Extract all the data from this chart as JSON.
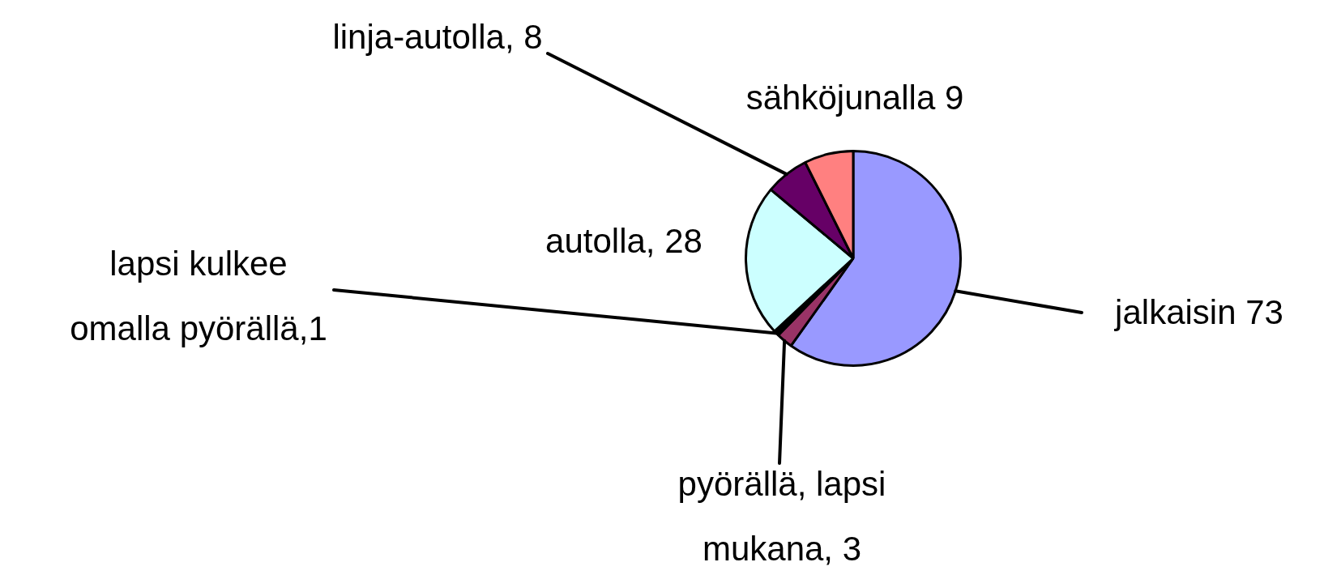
{
  "chart_data": {
    "type": "pie",
    "categories": [
      "jalkaisin 73",
      "pyörällä, lapsi mukana, 3",
      "lapsi kulkee omalla pyörällä,1",
      "autolla, 28",
      "linja-autolla, 8",
      "sähköjunalla 9"
    ],
    "values": [
      73,
      3,
      1,
      28,
      8,
      9
    ],
    "colors": [
      "#9999ff",
      "#993366",
      "#000000",
      "#ccffff",
      "#660066",
      "#ff8080"
    ],
    "legend": false
  }
}
